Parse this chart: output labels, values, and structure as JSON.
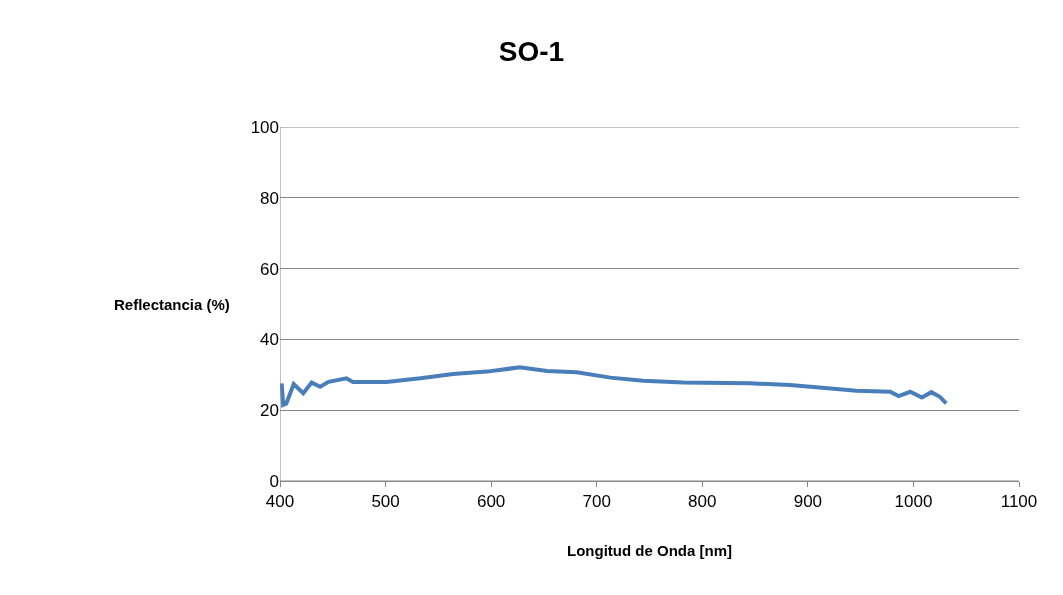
{
  "chart_data": {
    "type": "line",
    "title": "SO-1",
    "xlabel": "Longitud de Onda [nm]",
    "ylabel": "Reflectancia (%)",
    "x": [
      401.6,
      403,
      406,
      413,
      422,
      430,
      438,
      446,
      463,
      469,
      501,
      533,
      564,
      596,
      627,
      653,
      681,
      713,
      744,
      782,
      845,
      883,
      908,
      946,
      978,
      986,
      997,
      1008,
      1017,
      1025,
      1031
    ],
    "series": [
      {
        "color": "#4a7ebb",
        "values": [
          27.6,
          21.5,
          21.9,
          27.4,
          24.8,
          27.8,
          26.6,
          28.0,
          29.0,
          28.0,
          28.0,
          29.0,
          30.2,
          30.9,
          32.1,
          31.1,
          30.7,
          29.2,
          28.3,
          27.8,
          27.6,
          27.1,
          26.5,
          25.5,
          25.2,
          24.0,
          25.2,
          23.6,
          25.1,
          23.8,
          21.9
        ]
      }
    ],
    "xlim": [
      400,
      1100
    ],
    "xticks": [
      400,
      500,
      600,
      700,
      800,
      900,
      1000,
      1100
    ],
    "ylim": [
      0,
      100
    ],
    "yticks": [
      0,
      20,
      40,
      60,
      80,
      100
    ],
    "grid": "y",
    "marker": "none",
    "line_style": "solid"
  }
}
